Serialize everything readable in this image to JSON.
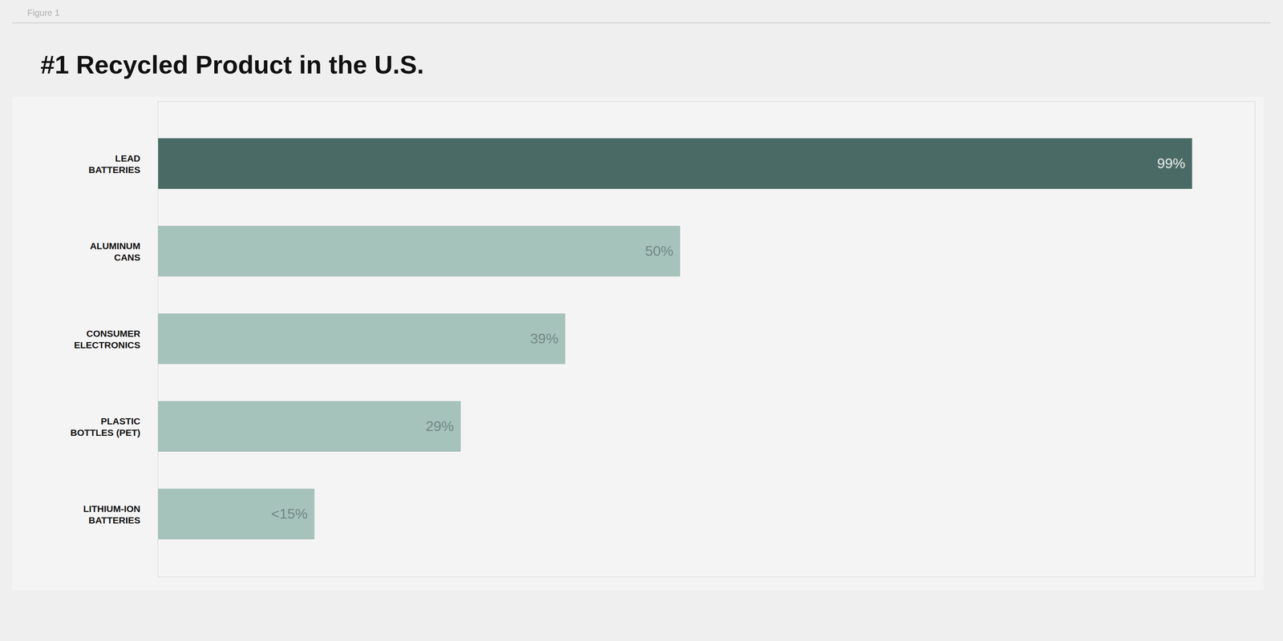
{
  "chart_data": {
    "type": "bar",
    "orientation": "horizontal",
    "title": "#1 Recycled Product in the U.S.",
    "annotations": [
      "Figure 1"
    ],
    "categories": [
      "LEAD\nBATTERIES",
      "ALUMINUM\nCANS",
      "CONSUMER\nELECTRONICS",
      "PLASTIC\nBOTTLES (PET)",
      "LITHIUM-ION\nBATTERIES"
    ],
    "values": [
      99,
      50,
      39,
      29,
      15
    ],
    "value_labels": [
      "99%",
      "50%",
      "39%",
      "29%",
      "<15%"
    ],
    "data_labels": true,
    "colors": [
      "#4a6b65",
      "#a5c2bb",
      "#a5c2bb",
      "#a5c2bb",
      "#a5c2bb"
    ],
    "xlim": [
      0,
      105
    ],
    "tick_labels": "y",
    "grid": false
  }
}
